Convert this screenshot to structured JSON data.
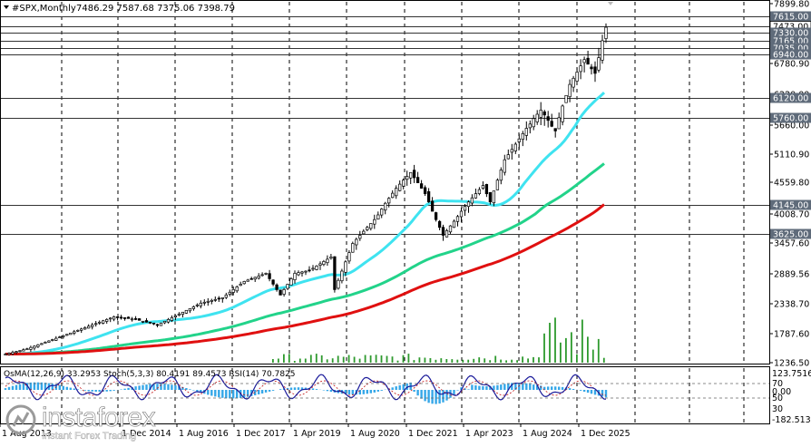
{
  "header": {
    "symbol_label": "#SPX,Monthly",
    "ohlc_text": "7486.29 7587.68 7375.06 7398.79"
  },
  "price_axis": {
    "labels": [
      {
        "text": "7899.80",
        "v": 7899.8
      },
      {
        "text": "6780.90",
        "v": 6780.9
      },
      {
        "text": "6220.00",
        "v": 6220.0
      },
      {
        "text": "5660.00",
        "v": 5660.0
      },
      {
        "text": "5110.90",
        "v": 5110.9
      },
      {
        "text": "4559.80",
        "v": 4559.8
      },
      {
        "text": "4008.70",
        "v": 4008.7
      },
      {
        "text": "3457.60",
        "v": 3457.6
      },
      {
        "text": "2889.56",
        "v": 2889.56
      },
      {
        "text": "2338.70",
        "v": 2338.7
      },
      {
        "text": "1787.60",
        "v": 1787.6
      },
      {
        "text": "1236.50",
        "v": 1236.5
      }
    ],
    "level_badges": [
      {
        "text": "7615.00",
        "v": 7615
      },
      {
        "text": "7473.00",
        "v": 7473,
        "current": true
      },
      {
        "text": "7330.00",
        "v": 7330
      },
      {
        "text": "7165.00",
        "v": 7165
      },
      {
        "text": "7035.00",
        "v": 7035
      },
      {
        "text": "6940.00",
        "v": 6940
      },
      {
        "text": "6120.00",
        "v": 6120
      },
      {
        "text": "5760.00",
        "v": 5760
      },
      {
        "text": "4145.00",
        "v": 4145
      },
      {
        "text": "3625.00",
        "v": 3625
      }
    ]
  },
  "indicator": {
    "label": "OsMA(12,26,9) 33.2953  Stoch(5,3,3) 80.4191 89.4573  RSI(14) 70.7825",
    "axis_labels": [
      {
        "text": "123.7516",
        "y": 412
      },
      {
        "text": "70",
        "y": 423
      },
      {
        "text": "0.00",
        "y": 432
      },
      {
        "text": "50",
        "y": 439
      },
      {
        "text": "30",
        "y": 451
      },
      {
        "text": "-182.5137",
        "y": 463
      }
    ]
  },
  "time_axis": {
    "labels": [
      "1 Aug 2013",
      "1 Dec 2014",
      "1 Aug 2016",
      "1 Dec 2017",
      "1 Apr 2019",
      "1 Aug 2020",
      "1 Dec 2021",
      "1 Apr 2023",
      "1 Aug 2024",
      "1 Dec 2025"
    ]
  },
  "watermark": {
    "brand": "instaforex",
    "tagline": "Instant Forex Trading"
  },
  "colors": {
    "background": "#ffffff",
    "price_line": "#000000",
    "ma_fast": "#3fe3f0",
    "ma_mid": "#22d38a",
    "ma_slow": "#e01010",
    "volume": "#2e9a2e",
    "osma": "#35a7e8",
    "stoch": "#1a1a9a",
    "grid": "#000000"
  },
  "chart_data": {
    "type": "candlestick",
    "title": "#SPX,Monthly",
    "series": [
      {
        "name": "#SPX,Monthly",
        "values": [
          [
            "2012-08",
            1400
          ],
          [
            "2013-02",
            1500
          ],
          [
            "2013-08",
            1650
          ],
          [
            "2014-02",
            1800
          ],
          [
            "2014-08",
            1950
          ],
          [
            "2015-02",
            2100
          ],
          [
            "2015-08",
            2050
          ],
          [
            "2016-02",
            1950
          ],
          [
            "2016-08",
            2150
          ],
          [
            "2017-02",
            2350
          ],
          [
            "2017-08",
            2450
          ],
          [
            "2018-02",
            2750
          ],
          [
            "2018-08",
            2900
          ],
          [
            "2018-12",
            2500
          ],
          [
            "2019-04",
            2900
          ],
          [
            "2019-08",
            2950
          ],
          [
            "2020-02",
            3200
          ],
          [
            "2020-03",
            2600
          ],
          [
            "2020-08",
            3450
          ],
          [
            "2021-02",
            3900
          ],
          [
            "2021-08",
            4450
          ],
          [
            "2021-12",
            4750
          ],
          [
            "2022-04",
            4350
          ],
          [
            "2022-09",
            3600
          ],
          [
            "2023-02",
            4050
          ],
          [
            "2023-08",
            4500
          ],
          [
            "2023-10",
            4200
          ],
          [
            "2024-02",
            5000
          ],
          [
            "2024-08",
            5600
          ],
          [
            "2024-12",
            5900
          ],
          [
            "2025-04",
            5550
          ],
          [
            "2025-08",
            6400
          ],
          [
            "2025-12",
            6850
          ],
          [
            "2026-03",
            6600
          ],
          [
            "2026-06",
            7450
          ]
        ]
      }
    ],
    "ylim": [
      1236.5,
      7899.8
    ]
  }
}
